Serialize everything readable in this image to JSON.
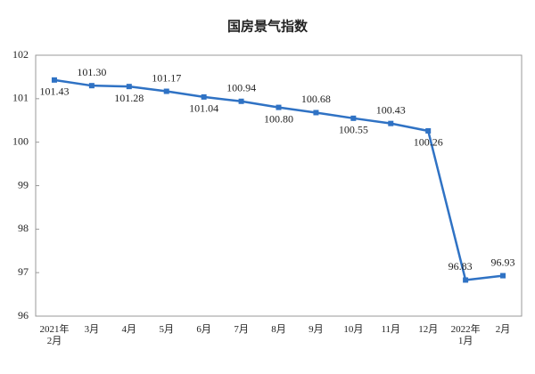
{
  "chart_data": {
    "type": "line",
    "title": "国房景气指数",
    "categories": [
      "2021年\n2月",
      "3月",
      "4月",
      "5月",
      "6月",
      "7月",
      "8月",
      "9月",
      "10月",
      "11月",
      "12月",
      "2022年\n1月",
      "2月"
    ],
    "series": [
      {
        "name": "国房景气指数",
        "color": "#2f72c4",
        "values": [
          101.43,
          101.3,
          101.28,
          101.17,
          101.04,
          100.94,
          100.8,
          100.68,
          100.55,
          100.43,
          100.26,
          96.83,
          96.93
        ],
        "value_labels": [
          "101.43",
          "101.30",
          "101.28",
          "101.17",
          "101.04",
          "100.94",
          "100.80",
          "100.68",
          "100.55",
          "100.43",
          "100.26",
          "96.83",
          "96.93"
        ]
      }
    ],
    "ylim": [
      96,
      102
    ],
    "yticks": [
      96,
      97,
      98,
      99,
      100,
      101,
      102
    ],
    "grid": false
  }
}
